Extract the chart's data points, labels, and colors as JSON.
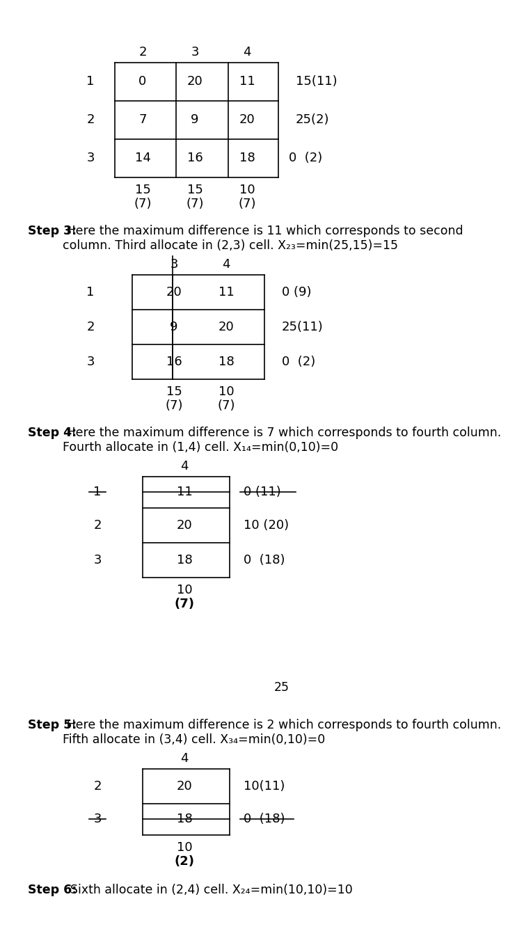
{
  "bg_color": "#ffffff",
  "step3_bold": "Step 3:",
  "step3_rest": " Here the maximum difference is 11 which corresponds to second\ncolumn. Third allocate in (2,3) cell. X₂₃=min(25,15)=15",
  "step4_bold": "Step 4:",
  "step4_rest": " Here the maximum difference is 7 which corresponds to fourth column.\nFourth allocate in (1,4) cell. X₁₄=min(0,10)=0",
  "step5_bold": "Step 5:",
  "step5_rest": " Here the maximum difference is 2 which corresponds to fourth column.\nFifth allocate in (3,4) cell. X₃₄=min(0,10)=0",
  "step6_bold": "Step 6:",
  "step6_rest": "  Sixth allocate in (2,4) cell. X₂₄=min(10,10)=10",
  "lone_number": "25",
  "fontsize_main": 12.5,
  "fontsize_table": 13
}
